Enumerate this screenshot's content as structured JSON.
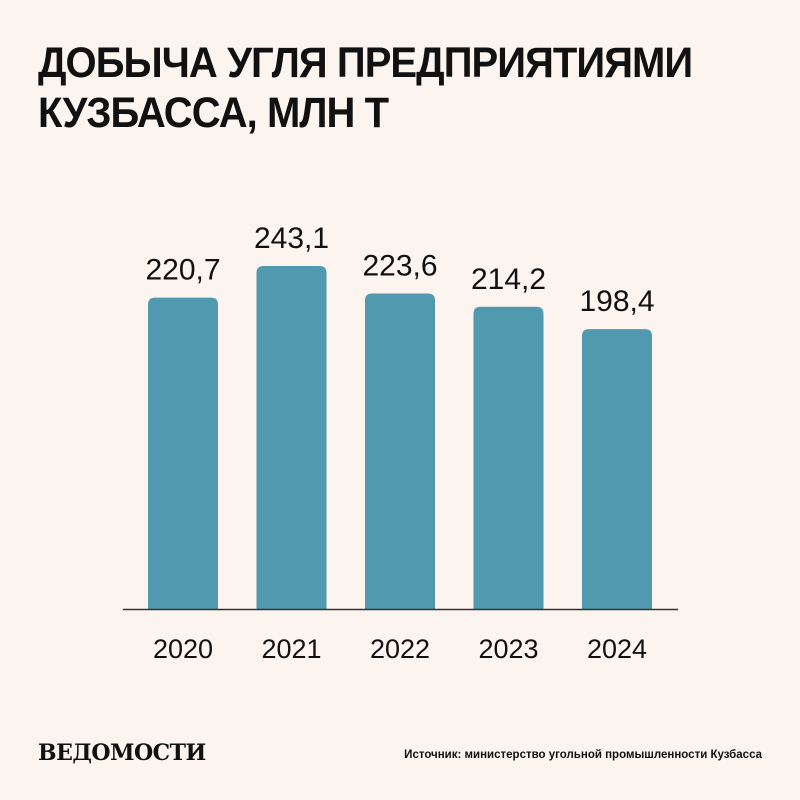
{
  "header": {
    "title_line1": "ДОБЫЧА УГЛЯ ПРЕДПРИЯТИЯМИ",
    "title_line2": "КУЗБАССА, МЛН Т"
  },
  "footer": {
    "logo": "ВЕДОМОСТИ",
    "source": "Источник: министерство угольной промышленности Кузбасса"
  },
  "colors": {
    "bar": "#5199ae",
    "axis": "#333333",
    "background": "#fcf4ef",
    "text": "#111111"
  },
  "chart_data": {
    "type": "bar",
    "title": "ДОБЫЧА УГЛЯ ПРЕДПРИЯТИЯМИ КУЗБАССА, МЛН Т",
    "categories": [
      "2020",
      "2021",
      "2022",
      "2023",
      "2024"
    ],
    "values": [
      220.7,
      243.1,
      223.6,
      214.2,
      198.4
    ],
    "value_labels": [
      "220,7",
      "243,1",
      "223,6",
      "214,2",
      "198,4"
    ],
    "xlabel": "",
    "ylabel": "",
    "ylim": [
      0,
      243.1
    ],
    "grid": false,
    "legend": "none"
  }
}
